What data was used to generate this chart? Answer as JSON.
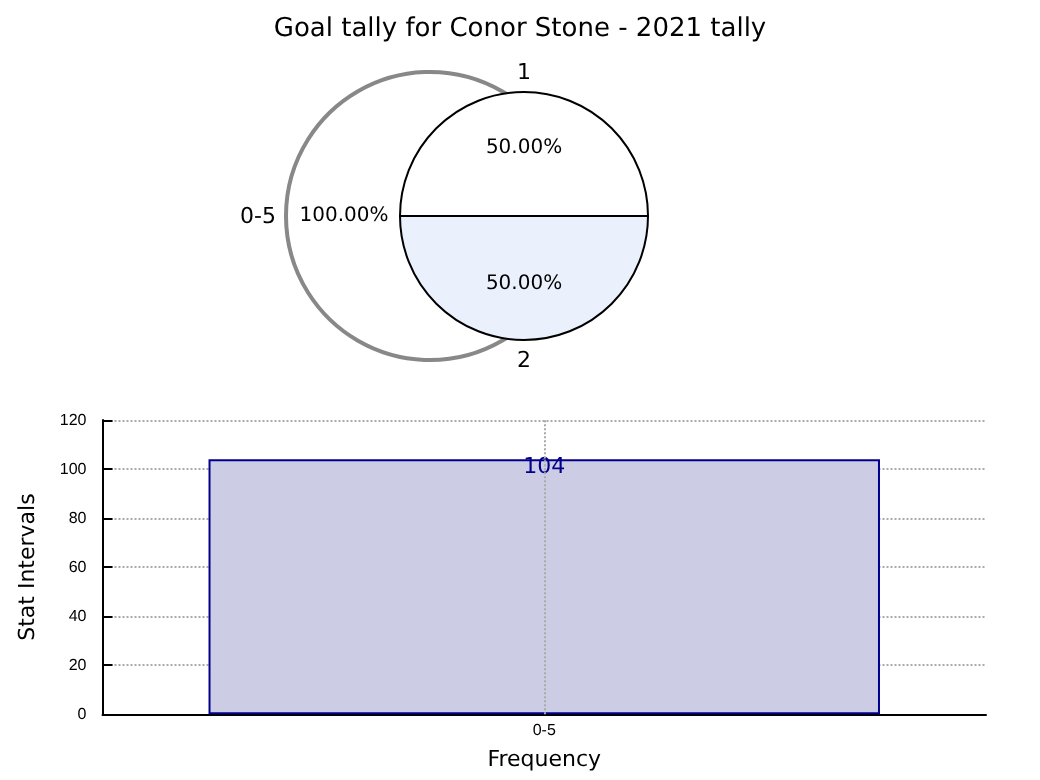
{
  "chart_data": [
    {
      "type": "pie",
      "title": "Goal tally for Conor Stone - 2021 tally",
      "categories": [
        "1",
        "2"
      ],
      "values": [
        50,
        50
      ],
      "colors": [
        "#ffffff",
        "#eaf0fc"
      ],
      "value_labels": [
        "50.00%",
        "50.00%"
      ]
    },
    {
      "type": "pie",
      "categories": [
        "0-5"
      ],
      "values": [
        100
      ],
      "colors": [
        "#ffffff"
      ],
      "value_labels": [
        "100.00%"
      ]
    },
    {
      "type": "bar",
      "categories": [
        "0-5"
      ],
      "values": [
        104
      ],
      "color": "#cccce4",
      "xlabel": "Frequency",
      "ylabel": "Stat Intervals",
      "ylim": [
        0,
        120
      ],
      "yticks": [
        0,
        20,
        40,
        60,
        80,
        100,
        120
      ],
      "grid": true,
      "data_labels": true
    }
  ]
}
